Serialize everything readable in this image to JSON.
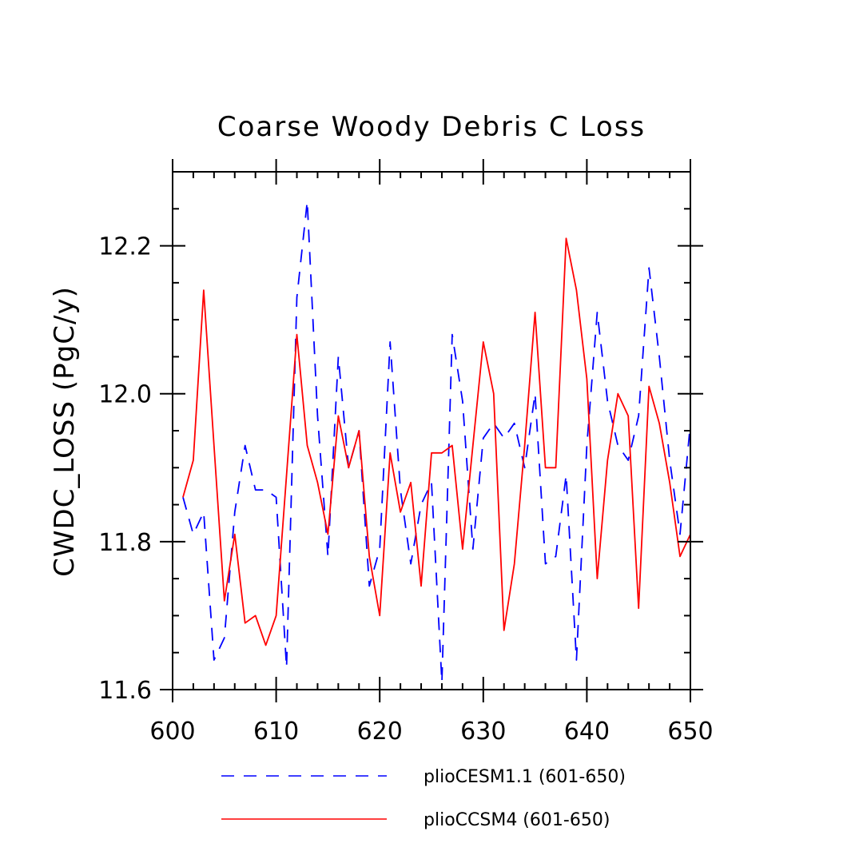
{
  "chart_data": {
    "type": "line",
    "title": "Coarse Woody Debris C Loss",
    "xlabel": "",
    "ylabel": "CWDC_LOSS  (PgC/y)",
    "xlim": [
      600,
      650
    ],
    "ylim": [
      11.6,
      12.3
    ],
    "xticks": [
      600,
      610,
      620,
      630,
      640,
      650
    ],
    "xtick_labels": [
      "600",
      "610",
      "620",
      "630",
      "640",
      "650"
    ],
    "yticks": [
      11.6,
      11.8,
      12.0,
      12.2
    ],
    "ytick_labels": [
      "11.6",
      "11.8",
      "12.0",
      "12.2"
    ],
    "y_minor_step": 0.05,
    "x_minor_step": 2,
    "grid": false,
    "legend": "bottom",
    "x": [
      601,
      602,
      603,
      604,
      605,
      606,
      607,
      608,
      609,
      610,
      611,
      612,
      613,
      614,
      615,
      616,
      617,
      618,
      619,
      620,
      621,
      622,
      623,
      624,
      625,
      626,
      627,
      628,
      629,
      630,
      631,
      632,
      633,
      634,
      635,
      636,
      637,
      638,
      639,
      640,
      641,
      642,
      643,
      644,
      645,
      646,
      647,
      648,
      649,
      650
    ],
    "series": [
      {
        "name": "plioCESM1.1 (601-650)",
        "color": "#0000ff",
        "dash": "dashed",
        "values": [
          11.86,
          11.81,
          11.84,
          11.64,
          11.67,
          11.84,
          11.93,
          11.87,
          11.87,
          11.86,
          11.63,
          12.13,
          12.26,
          11.97,
          11.78,
          12.05,
          11.9,
          11.95,
          11.74,
          11.79,
          12.07,
          11.87,
          11.77,
          11.85,
          11.88,
          11.61,
          12.08,
          11.99,
          11.79,
          11.94,
          11.96,
          11.94,
          11.96,
          11.9,
          12.0,
          11.77,
          11.78,
          11.89,
          11.64,
          11.93,
          12.11,
          11.99,
          11.93,
          11.91,
          11.97,
          12.17,
          12.05,
          11.91,
          11.81,
          11.96
        ]
      },
      {
        "name": "plioCCSM4 (601-650)",
        "color": "#ff0000",
        "dash": "solid",
        "values": [
          11.86,
          11.91,
          12.14,
          11.93,
          11.72,
          11.81,
          11.69,
          11.7,
          11.66,
          11.7,
          11.89,
          12.08,
          11.93,
          11.88,
          11.81,
          11.97,
          11.9,
          11.95,
          11.78,
          11.7,
          11.92,
          11.84,
          11.88,
          11.74,
          11.92,
          11.92,
          11.93,
          11.79,
          11.93,
          12.07,
          12.0,
          11.68,
          11.77,
          11.93,
          12.11,
          11.9,
          11.9,
          12.21,
          12.14,
          12.02,
          11.75,
          11.91,
          12.0,
          11.97,
          11.71,
          12.01,
          11.96,
          11.88,
          11.78,
          11.81
        ]
      }
    ]
  }
}
